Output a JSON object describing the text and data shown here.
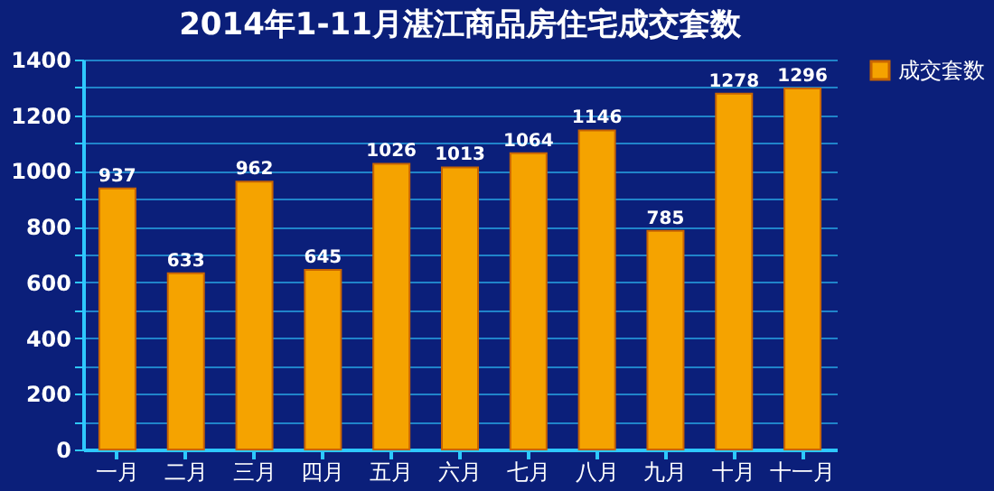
{
  "chart_data": {
    "type": "bar",
    "title": "2014年1-11月湛江商品房住宅成交套数",
    "categories": [
      "一月",
      "二月",
      "三月",
      "四月",
      "五月",
      "六月",
      "七月",
      "八月",
      "九月",
      "十月",
      "十一月"
    ],
    "series": [
      {
        "name": "成交套数",
        "color": "#f5a300",
        "values": [
          937,
          633,
          962,
          645,
          1026,
          1013,
          1064,
          1146,
          785,
          1278,
          1296
        ]
      }
    ],
    "ylim": [
      0,
      1400
    ],
    "yticks": [
      0,
      {
        "value": 100,
        "label": null
      },
      200,
      {
        "value": 300,
        "label": null
      },
      400,
      {
        "value": 500,
        "label": null
      },
      600,
      {
        "value": 700,
        "label": null
      },
      800,
      {
        "value": 900,
        "label": null
      },
      1000,
      {
        "value": 1100,
        "label": null
      },
      1200,
      {
        "value": 1300,
        "label": null
      },
      1400
    ],
    "grid": "y",
    "legend": "right",
    "data_labels": true
  }
}
